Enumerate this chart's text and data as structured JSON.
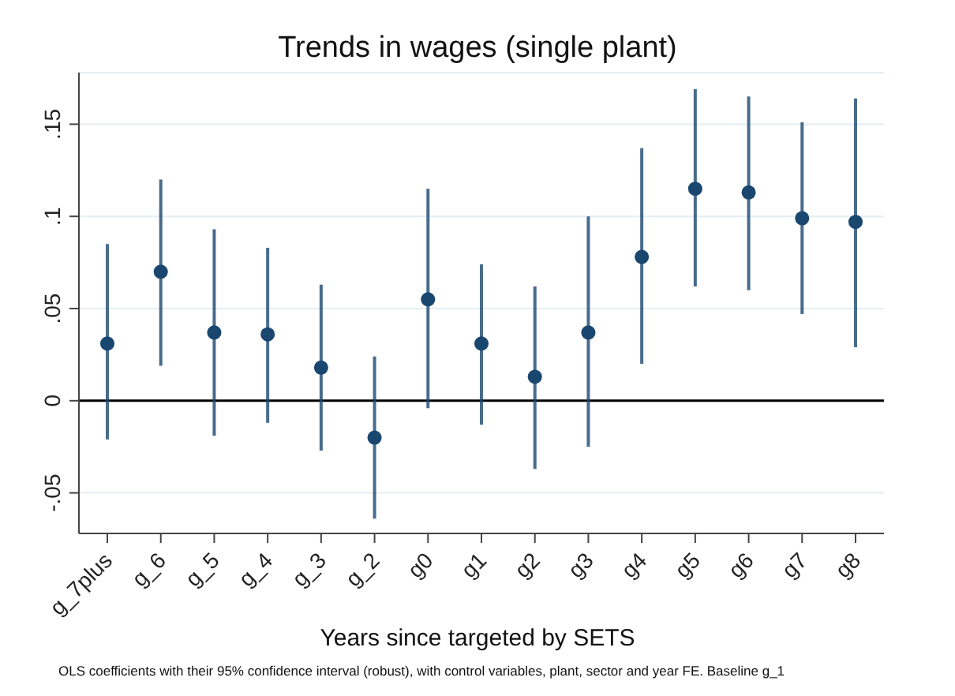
{
  "chart_data": {
    "type": "scatter",
    "title": "Trends in wages (single plant)",
    "xlabel": "Years since targeted by SETS",
    "annotations": [
      "OLS coefficients with their 95% confidence interval (robust), with control variables, plant, sector and year FE. Baseline g_1"
    ],
    "categories": [
      "g_7plus",
      "g_6",
      "g_5",
      "g_4",
      "g_3",
      "g_2",
      "g0",
      "g1",
      "g2",
      "g3",
      "g4",
      "g5",
      "g6",
      "g7",
      "g8"
    ],
    "values": [
      0.031,
      0.07,
      0.037,
      0.036,
      0.018,
      -0.02,
      0.055,
      0.031,
      0.013,
      0.037,
      0.078,
      0.115,
      0.113,
      0.099,
      0.097
    ],
    "errors": [
      [
        -0.021,
        0.085
      ],
      [
        0.019,
        0.12
      ],
      [
        -0.019,
        0.093
      ],
      [
        -0.012,
        0.083
      ],
      [
        -0.027,
        0.063
      ],
      [
        -0.064,
        0.024
      ],
      [
        -0.004,
        0.115
      ],
      [
        -0.013,
        0.074
      ],
      [
        -0.037,
        0.062
      ],
      [
        -0.025,
        0.1
      ],
      [
        0.02,
        0.137
      ],
      [
        0.062,
        0.169
      ],
      [
        0.06,
        0.165
      ],
      [
        0.047,
        0.151
      ],
      [
        0.029,
        0.164
      ]
    ],
    "color": "#1a476f",
    "marker": "circle",
    "ylim": [
      -0.072,
      0.178
    ],
    "yticks": [
      {
        "value": -0.05,
        "label": "-.05"
      },
      {
        "value": 0,
        "label": "0"
      },
      {
        "value": 0.05,
        "label": ".05"
      },
      {
        "value": 0.1,
        "label": ".1"
      },
      {
        "value": 0.15,
        "label": ".15"
      }
    ],
    "grid": "y",
    "ref_lines": [
      {
        "axis": "y",
        "value": 0,
        "color": "#000000"
      }
    ]
  }
}
